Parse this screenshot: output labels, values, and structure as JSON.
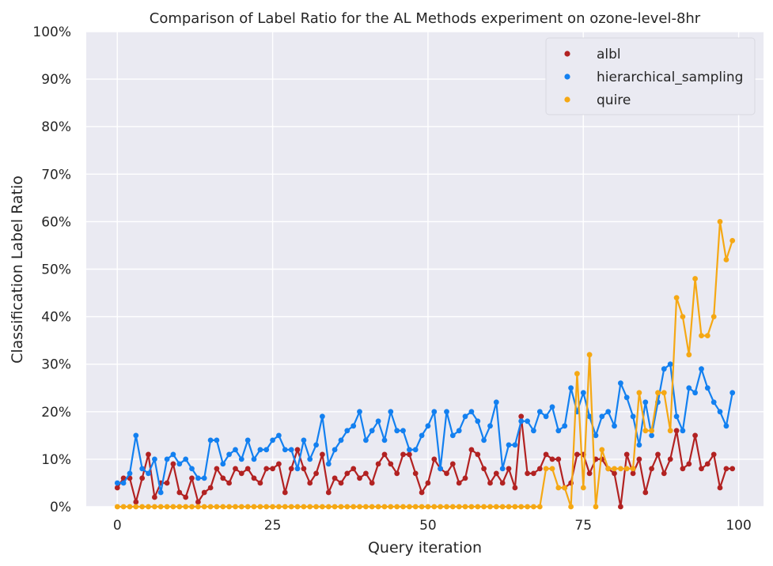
{
  "chart_data": {
    "type": "line",
    "title": "Comparison of Label Ratio for the AL Methods experiment on ozone-level-8hr",
    "xlabel": "Query iteration",
    "ylabel": "Classification Label Ratio",
    "xlim": [
      -5,
      104
    ],
    "ylim": [
      0,
      100
    ],
    "xticks": [
      0,
      25,
      50,
      75,
      100
    ],
    "xtick_labels": [
      "0",
      "25",
      "50",
      "75",
      "100"
    ],
    "yticks": [
      0,
      10,
      20,
      30,
      40,
      50,
      60,
      70,
      80,
      90,
      100
    ],
    "ytick_labels": [
      "0%",
      "10%",
      "20%",
      "30%",
      "40%",
      "50%",
      "60%",
      "70%",
      "80%",
      "90%",
      "100%"
    ],
    "grid": true,
    "legend_position": "top-right",
    "background_color": "#eaeaf2",
    "series": [
      {
        "name": "albl",
        "color": "#b22222",
        "x_start": 0,
        "values": [
          4,
          6,
          6,
          1,
          6,
          11,
          2,
          5,
          5,
          9,
          3,
          2,
          6,
          1,
          3,
          4,
          8,
          6,
          5,
          8,
          7,
          8,
          6,
          5,
          8,
          8,
          9,
          3,
          8,
          12,
          8,
          5,
          7,
          11,
          3,
          6,
          5,
          7,
          8,
          6,
          7,
          5,
          9,
          11,
          9,
          7,
          11,
          11,
          7,
          3,
          5,
          10,
          8,
          7,
          9,
          5,
          6,
          12,
          11,
          8,
          5,
          7,
          5,
          8,
          4,
          19,
          7,
          7,
          8,
          11,
          10,
          10,
          4,
          5,
          11,
          11,
          7,
          10,
          10,
          8,
          7,
          0,
          11,
          7,
          10,
          3,
          8,
          11,
          7,
          10,
          16,
          8,
          9,
          15,
          8,
          9,
          11,
          4,
          8,
          8
        ]
      },
      {
        "name": "hierarchical_sampling",
        "color": "#1380f0",
        "x_start": 0,
        "values": [
          5,
          5,
          7,
          15,
          8,
          7,
          10,
          3,
          10,
          11,
          9,
          10,
          8,
          6,
          6,
          14,
          14,
          9,
          11,
          12,
          10,
          14,
          10,
          12,
          12,
          14,
          15,
          12,
          12,
          8,
          14,
          10,
          13,
          19,
          9,
          12,
          14,
          16,
          17,
          20,
          14,
          16,
          18,
          14,
          20,
          16,
          16,
          12,
          12,
          15,
          17,
          20,
          8,
          20,
          15,
          16,
          19,
          20,
          18,
          14,
          17,
          22,
          8,
          13,
          13,
          18,
          18,
          16,
          20,
          19,
          21,
          16,
          17,
          25,
          20,
          24,
          19,
          15,
          19,
          20,
          17,
          26,
          23,
          19,
          13,
          22,
          15,
          22,
          29,
          30,
          19,
          16,
          25,
          24,
          29,
          25,
          22,
          20,
          17,
          24
        ]
      },
      {
        "name": "quire",
        "color": "#f5a814",
        "x_start": 0,
        "values": [
          0,
          0,
          0,
          0,
          0,
          0,
          0,
          0,
          0,
          0,
          0,
          0,
          0,
          0,
          0,
          0,
          0,
          0,
          0,
          0,
          0,
          0,
          0,
          0,
          0,
          0,
          0,
          0,
          0,
          0,
          0,
          0,
          0,
          0,
          0,
          0,
          0,
          0,
          0,
          0,
          0,
          0,
          0,
          0,
          0,
          0,
          0,
          0,
          0,
          0,
          0,
          0,
          0,
          0,
          0,
          0,
          0,
          0,
          0,
          0,
          0,
          0,
          0,
          0,
          0,
          0,
          0,
          0,
          0,
          8,
          8,
          4,
          4,
          0,
          28,
          4,
          32,
          0,
          12,
          8,
          8,
          8,
          8,
          8,
          24,
          16,
          16,
          24,
          24,
          16,
          44,
          40,
          32,
          48,
          36,
          36,
          40,
          60,
          52,
          56
        ]
      }
    ]
  }
}
